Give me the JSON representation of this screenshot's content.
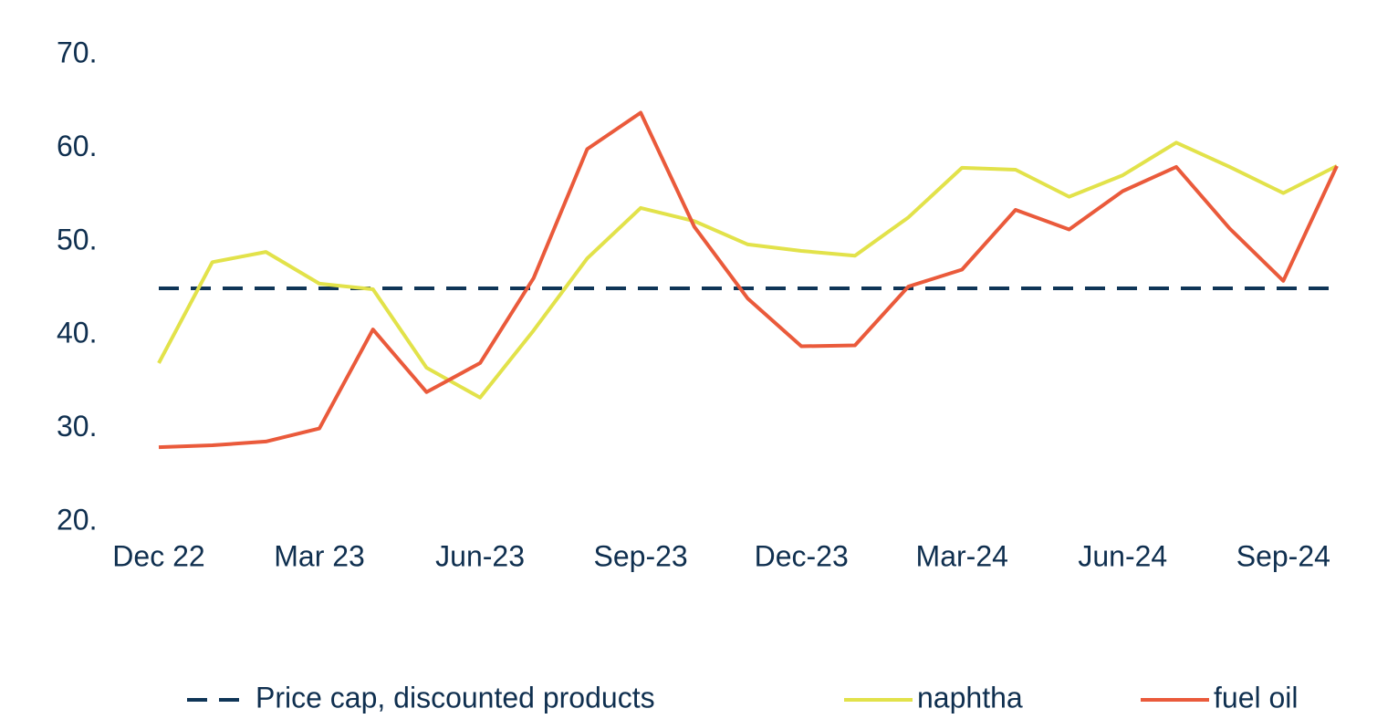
{
  "chart_data": {
    "type": "line",
    "categories": [
      "Dec 22",
      null,
      null,
      "Mar 23",
      null,
      null,
      "Jun-23",
      null,
      null,
      "Sep-23",
      null,
      null,
      "Dec-23",
      null,
      null,
      "Mar-24",
      null,
      null,
      "Jun-24",
      null,
      null,
      "Sep-24",
      null
    ],
    "series": [
      {
        "name": "Price cap, discounted products",
        "color": "#0f3557",
        "dash": true,
        "values": [
          45,
          45,
          45,
          45,
          45,
          45,
          45,
          45,
          45,
          45,
          45,
          45,
          45,
          45,
          45,
          45,
          45,
          45,
          45,
          45,
          45,
          45,
          45
        ]
      },
      {
        "name": "naphtha",
        "color": "#e2e24a",
        "dash": false,
        "values": [
          37.0,
          47.8,
          48.9,
          45.5,
          44.9,
          36.5,
          33.3,
          40.5,
          48.2,
          53.6,
          52.2,
          49.7,
          49.0,
          48.5,
          52.6,
          57.9,
          57.7,
          54.8,
          57.1,
          60.6,
          58.0,
          55.2,
          58.1
        ]
      },
      {
        "name": "fuel oil",
        "color": "#ea5a3b",
        "dash": false,
        "values": [
          28.0,
          28.2,
          28.6,
          30.0,
          40.6,
          33.9,
          37.0,
          46.1,
          59.9,
          63.8,
          51.6,
          43.9,
          38.8,
          38.9,
          45.2,
          47.0,
          53.4,
          51.3,
          55.4,
          58.0,
          51.4,
          45.8,
          58.1
        ]
      }
    ],
    "ylim": [
      20,
      70
    ],
    "yticks": [
      {
        "value": 20,
        "label": "20."
      },
      {
        "value": 30,
        "label": "30."
      },
      {
        "value": 40,
        "label": "40."
      },
      {
        "value": 50,
        "label": "50."
      },
      {
        "value": 60,
        "label": "60."
      },
      {
        "value": 70,
        "label": "70."
      }
    ],
    "legend": "bottom"
  }
}
